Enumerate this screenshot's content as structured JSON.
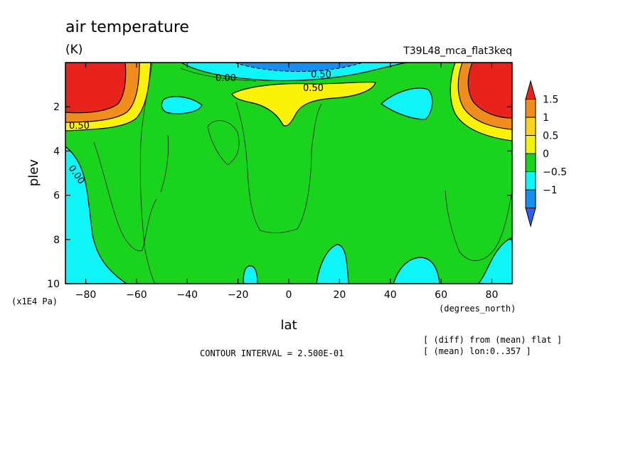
{
  "chart_data": {
    "type": "contour",
    "title": "air temperature",
    "units": "(K)",
    "run_label": "T39L48_mca_flat3keq",
    "xlabel": "lat",
    "ylabel": "plev",
    "x_unit_label": "(degrees_north)",
    "y_unit_label": "(x1E4 Pa)",
    "xlim": [
      -88,
      88
    ],
    "ylim": [
      10,
      0
    ],
    "x_ticks": [
      -80,
      -60,
      -40,
      -20,
      0,
      20,
      40,
      60,
      80
    ],
    "x_tick_labels": [
      "−80",
      "−60",
      "−40",
      "−20",
      "0",
      "20",
      "40",
      "60",
      "80"
    ],
    "y_ticks": [
      2,
      4,
      6,
      8,
      10
    ],
    "y_tick_labels": [
      "2",
      "4",
      "6",
      "8",
      "10"
    ],
    "contour_interval_text": "CONTOUR INTERVAL = 2.500E-01",
    "notes": [
      "[ (diff) from (mean) flat ]",
      "[ (mean) lon:0..357 ]"
    ],
    "colorbar": {
      "levels": [
        1.5,
        1,
        0.5,
        0,
        -0.5,
        -1
      ],
      "labels": [
        "1.5",
        "1",
        "0.5",
        "0",
        "−0.5",
        "−1"
      ],
      "colors": [
        "#e8231b",
        "#f08d1d",
        "#fbd21c",
        "#f2f20a",
        "#19d31d",
        "#0ef5f7",
        "#168ef2",
        "#2f5ef2"
      ]
    },
    "contour_labels": [
      "0.00",
      "0.50",
      "0.50",
      "0.50",
      "0.00"
    ],
    "regions": [
      {
        "name": "north-pole-upper-max",
        "lat": [
          62,
          88
        ],
        "plev": [
          0.2,
          2.4
        ],
        "value": 1.75
      },
      {
        "name": "south-pole-upper-max",
        "lat": [
          -88,
          -64
        ],
        "plev": [
          0.2,
          2.5
        ],
        "value": 1.75
      },
      {
        "name": "equatorial-upper-positive",
        "lat": [
          -20,
          33
        ],
        "plev": [
          1.0,
          3.0
        ],
        "value": 0.6
      },
      {
        "name": "upper-negative-jet",
        "lat": [
          -45,
          40
        ],
        "plev": [
          0.0,
          0.8
        ],
        "value": -0.8
      },
      {
        "name": "southern-cold-patch",
        "lat": [
          -50,
          -35
        ],
        "plev": [
          1.6,
          2.4
        ],
        "value": -0.2
      },
      {
        "name": "northern-cold-patch",
        "lat": [
          40,
          58
        ],
        "plev": [
          1.2,
          2.7
        ],
        "value": -0.2
      },
      {
        "name": "southern-lower-cold",
        "lat": [
          -88,
          -55
        ],
        "plev": [
          4.0,
          10
        ],
        "value": -0.2
      },
      {
        "name": "northern-lower-cold",
        "lat": [
          45,
          88
        ],
        "plev": [
          8.0,
          10
        ],
        "value": -0.2
      }
    ]
  }
}
